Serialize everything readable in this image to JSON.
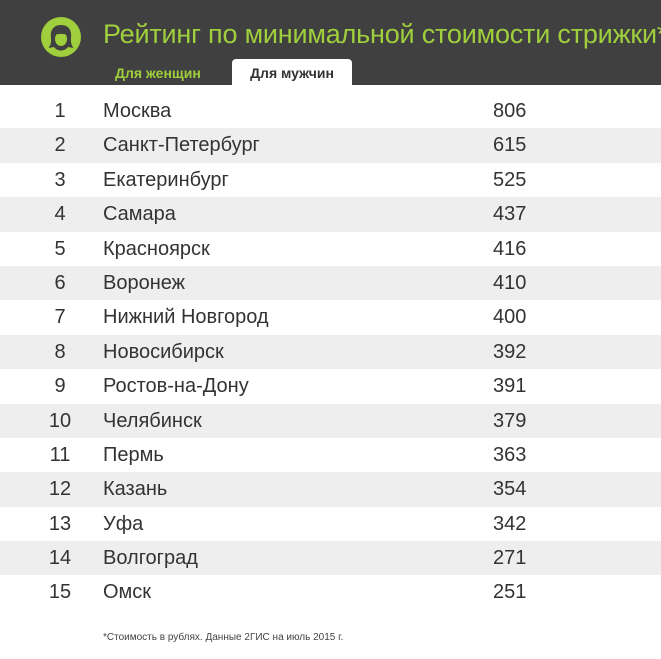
{
  "header": {
    "title": "Рейтинг по минимальной стоимости стрижки*",
    "logo_icon": "woman-silhouette-icon",
    "colors": {
      "background": "#404040",
      "accent": "#9fcf3c"
    }
  },
  "tabs": [
    {
      "label": "Для женщин",
      "active": false
    },
    {
      "label": "Для мужчин",
      "active": true
    }
  ],
  "table": {
    "rows": [
      {
        "rank": "1",
        "city": "Москва",
        "price": "806"
      },
      {
        "rank": "2",
        "city": "Санкт-Петербург",
        "price": "615"
      },
      {
        "rank": "3",
        "city": "Екатеринбург",
        "price": "525"
      },
      {
        "rank": "4",
        "city": "Самара",
        "price": "437"
      },
      {
        "rank": "5",
        "city": "Красноярск",
        "price": "416"
      },
      {
        "rank": "6",
        "city": "Воронеж",
        "price": "410"
      },
      {
        "rank": "7",
        "city": "Нижний Новгород",
        "price": "400"
      },
      {
        "rank": "8",
        "city": "Новосибирск",
        "price": "392"
      },
      {
        "rank": "9",
        "city": "Ростов-на-Дону",
        "price": "391"
      },
      {
        "rank": "10",
        "city": "Челябинск",
        "price": "379"
      },
      {
        "rank": "11",
        "city": "Пермь",
        "price": "363"
      },
      {
        "rank": "12",
        "city": "Казань",
        "price": "354"
      },
      {
        "rank": "13",
        "city": "Уфа",
        "price": "342"
      },
      {
        "rank": "14",
        "city": "Волгоград",
        "price": "271"
      },
      {
        "rank": "15",
        "city": "Омск",
        "price": "251"
      }
    ]
  },
  "footnote": "*Стоимость в рублях. Данные 2ГИС на июль 2015 г."
}
